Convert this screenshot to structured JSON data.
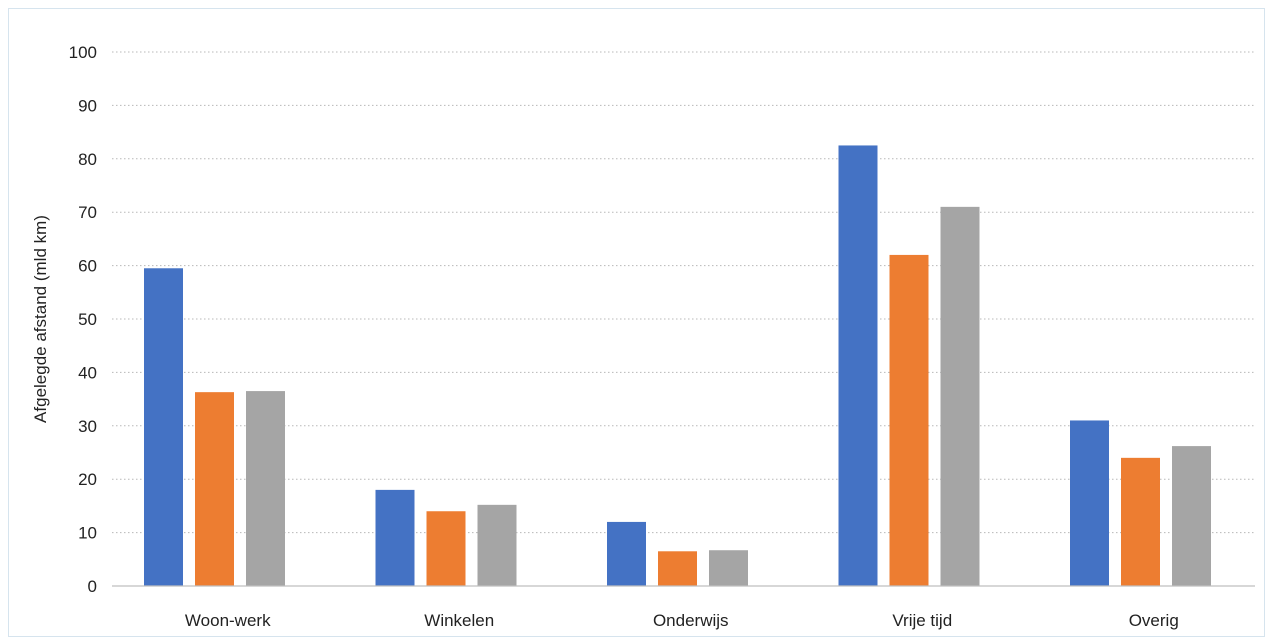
{
  "chart_data": {
    "type": "bar",
    "title": "",
    "xlabel": "",
    "ylabel": "Afgelegde afstand (mld km)",
    "ylim": [
      0,
      100
    ],
    "yticks": [
      0,
      10,
      20,
      30,
      40,
      50,
      60,
      70,
      80,
      90,
      100
    ],
    "grid": true,
    "legend": "none",
    "categories": [
      "Woon-werk",
      "Winkelen",
      "Onderwijs",
      "Vrije tijd",
      "Overig"
    ],
    "series": [
      {
        "color": "#4472C4",
        "values": [
          59.5,
          18.0,
          12.0,
          82.5,
          31.0
        ]
      },
      {
        "color": "#ED7D31",
        "values": [
          36.3,
          14.0,
          6.5,
          62.0,
          24.0
        ]
      },
      {
        "color": "#A5A5A5",
        "values": [
          36.5,
          15.2,
          6.7,
          71.0,
          26.2
        ]
      }
    ]
  }
}
